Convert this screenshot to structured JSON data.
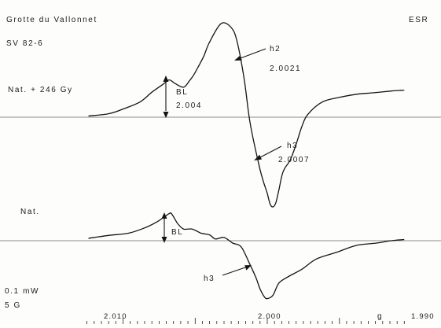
{
  "chart_data": {
    "type": "line",
    "x_axis": {
      "label": "g",
      "reversed": true,
      "range": [
        2.0124,
        1.9905
      ],
      "tick_labels": [
        "2.010",
        "2.000",
        "1.990"
      ]
    },
    "text": {
      "site": "Grotte du Vallonnet",
      "technique": "ESR",
      "sample": "SV 82-6",
      "power": "0.1 mW",
      "modulation": "5 G"
    },
    "series": [
      {
        "name": "Nat. + 246 Gy",
        "baseline_y": 0,
        "x": [
          2.0124,
          2.011,
          2.01,
          2.0088,
          2.008,
          2.0072,
          2.0068,
          2.0064,
          2.0058,
          2.0054,
          2.0051,
          2.0048,
          2.0044,
          2.004,
          2.0032,
          2.0025,
          2.0021,
          2.0016,
          2.0012,
          2.0006,
          2.0003,
          2.0,
          1.9998,
          1.9996,
          1.9994,
          1.9992,
          1.9989,
          1.9984,
          1.998,
          1.9976,
          1.9972,
          1.9962,
          1.995,
          1.9938,
          1.9926,
          1.9914,
          1.9905
        ],
        "y": [
          0.4,
          1.2,
          2.8,
          5.3,
          8.6,
          11.4,
          12.8,
          11.6,
          10.3,
          12.5,
          14.5,
          17.2,
          21.0,
          25.8,
          32.2,
          30.8,
          26.1,
          13.1,
          -1.7,
          -15.9,
          -21.6,
          -26.2,
          -29.9,
          -30.8,
          -29.3,
          -25.1,
          -18.7,
          -14.6,
          -9.3,
          -3.2,
          0.9,
          5.2,
          6.8,
          7.9,
          8.4,
          9.0,
          9.3
        ],
        "annotations": [
          {
            "label": "BL",
            "value": "2.004"
          },
          {
            "label": "h2",
            "value": "2.0021"
          },
          {
            "label": "h3",
            "value": "2.0007"
          }
        ]
      },
      {
        "name": "Nat.",
        "baseline_y": 0,
        "x": [
          2.0124,
          2.011,
          2.0096,
          2.0084,
          2.0076,
          2.0068,
          2.0066,
          2.0062,
          2.0058,
          2.0052,
          2.0046,
          2.004,
          2.0036,
          2.003,
          2.0024,
          2.0018,
          2.0012,
          2.0008,
          2.0005,
          2.0002,
          2.0,
          1.9996,
          1.9992,
          1.9986,
          1.9976,
          1.9966,
          1.9952,
          1.9938,
          1.9924,
          1.9914,
          1.9905
        ],
        "y": [
          0.8,
          1.8,
          2.6,
          4.6,
          6.6,
          9.3,
          9.0,
          5.8,
          4.0,
          4.0,
          2.6,
          2.0,
          0.6,
          1.1,
          -0.8,
          -2.2,
          -8.2,
          -12.5,
          -16.6,
          -19.3,
          -19.9,
          -18.7,
          -14.6,
          -12.5,
          -9.8,
          -6.3,
          -4.0,
          -1.6,
          -0.8,
          0.0,
          0.4
        ],
        "annotations": [
          {
            "label": "BL"
          },
          {
            "label": "h3"
          }
        ]
      }
    ]
  }
}
